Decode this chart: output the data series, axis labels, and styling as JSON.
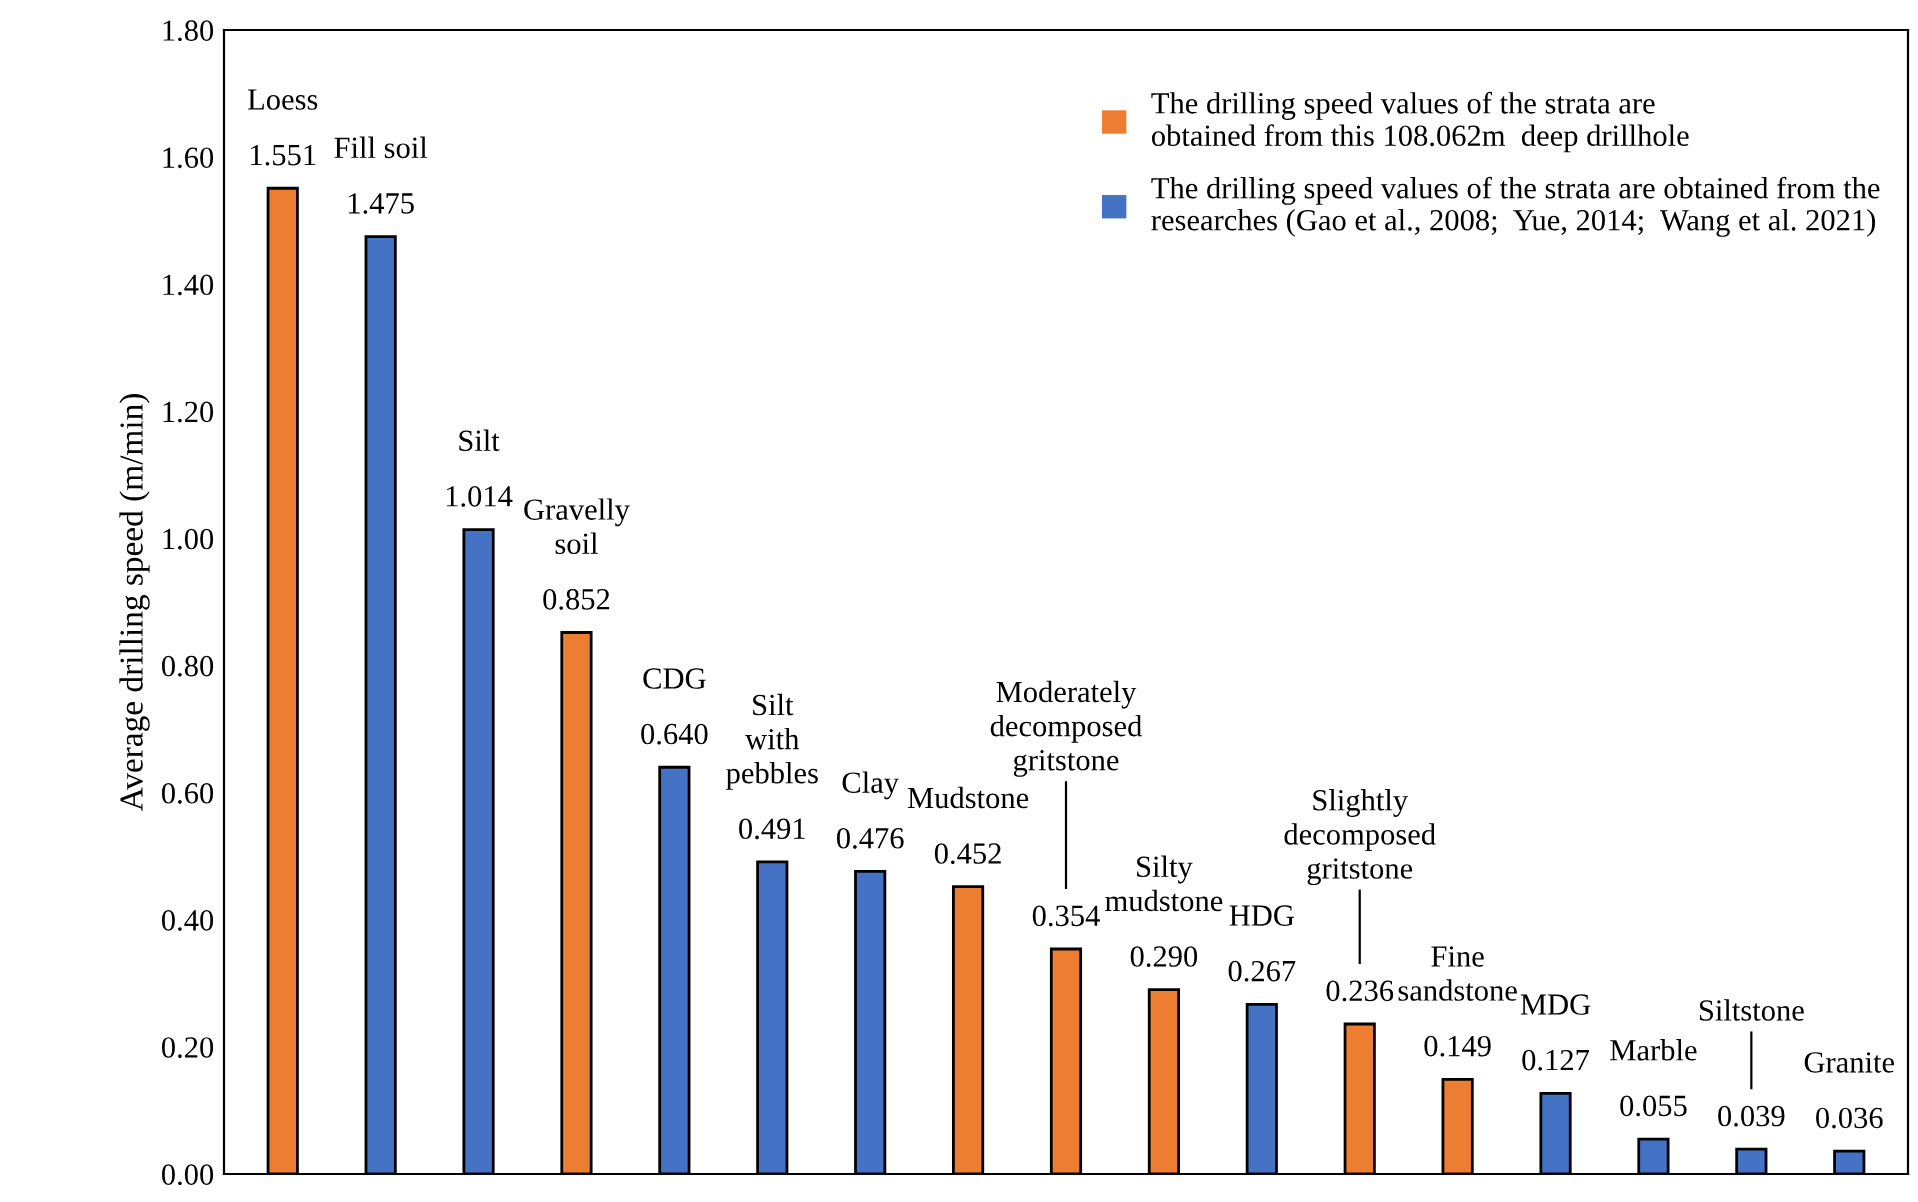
{
  "chart_data": {
    "type": "bar",
    "ylabel": "Average drilling speed (m/min)",
    "categories": [
      "Loess",
      "Fill soil",
      "Silt",
      "Gravelly\nsoil",
      "CDG",
      "Silt\nwith\npebbles",
      "Clay",
      "Mudstone",
      "Moderately\ndecomposed\ngritstone",
      "Silty\nmudstone",
      "HDG",
      "Slightly\ndecomposed\ngritstone",
      "Fine\nsandstone",
      "MDG",
      "Marble",
      "Siltstone",
      "Granite"
    ],
    "series": [
      {
        "name": "The drilling speed values of the strata are\nobtained from this 108.062m  deep drillhole",
        "color": "#ed7d31",
        "values": [
          1.551,
          null,
          null,
          0.852,
          null,
          null,
          null,
          0.452,
          0.354,
          0.29,
          null,
          0.236,
          0.149,
          null,
          null,
          null,
          null
        ],
        "value_labels": [
          "1.551",
          null,
          null,
          "0.852",
          null,
          null,
          null,
          "0.452",
          "0.354",
          "0.290",
          null,
          "0.236",
          "0.149",
          null,
          null,
          null,
          null
        ]
      },
      {
        "name": "The drilling speed values of the strata are obtained from the\nresearches (Gao et al., 2008;  Yue, 2014;  Wang et al. 2021)",
        "color": "#4472c4",
        "values": [
          null,
          1.475,
          1.014,
          null,
          0.64,
          0.491,
          0.476,
          null,
          null,
          null,
          0.267,
          null,
          null,
          0.127,
          0.055,
          0.039,
          0.036
        ],
        "value_labels": [
          null,
          "1.475",
          "1.014",
          null,
          "0.640",
          "0.491",
          "0.476",
          null,
          null,
          null,
          "0.267",
          null,
          null,
          "0.127",
          "0.055",
          "0.039",
          "0.036"
        ]
      }
    ],
    "ylim": [
      0,
      1.8
    ],
    "yticks": [
      {
        "value": 0,
        "label": "0.00"
      },
      {
        "value": 0.2,
        "label": "0.20"
      },
      {
        "value": 0.4,
        "label": "0.40"
      },
      {
        "value": 0.6,
        "label": "0.60"
      },
      {
        "value": 0.8,
        "label": "0.80"
      },
      {
        "value": 1.0,
        "label": "1.00"
      },
      {
        "value": 1.2,
        "label": "1.20"
      },
      {
        "value": 1.4,
        "label": "1.40"
      },
      {
        "value": 1.6,
        "label": "1.60"
      },
      {
        "value": 1.8,
        "label": "1.80"
      }
    ],
    "tick_labels": "y",
    "grid": false,
    "legend": "top right"
  }
}
